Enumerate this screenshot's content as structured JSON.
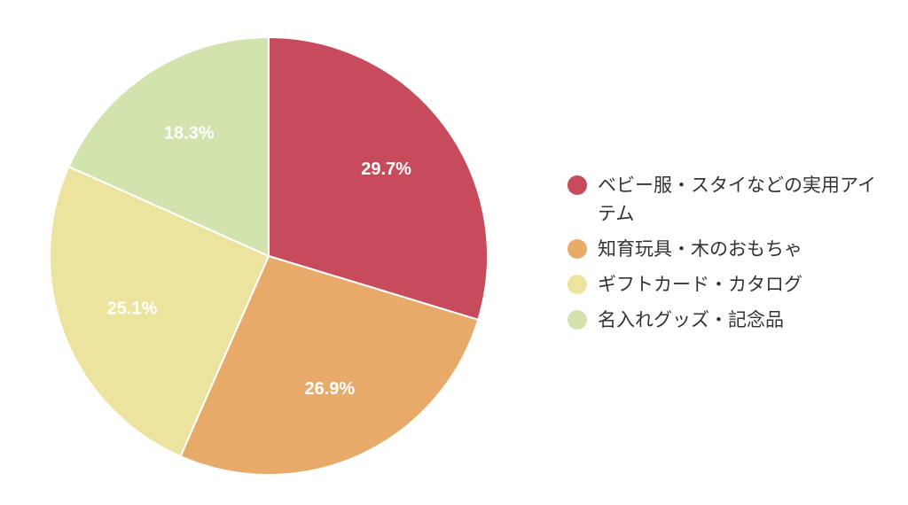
{
  "chart_data": {
    "type": "pie",
    "start_angle_deg": 0,
    "direction": "clockwise",
    "legend_position": "right",
    "slices": [
      {
        "label": "ベビー服・スタイなどの実用アイテム",
        "value": 29.7,
        "value_label": "29.7%",
        "color": "#c84b5c"
      },
      {
        "label": "知育玩具・木のおもちゃ",
        "value": 26.9,
        "value_label": "26.9%",
        "color": "#e8aa68"
      },
      {
        "label": "ギフトカード・カタログ",
        "value": 25.1,
        "value_label": "25.1%",
        "color": "#ece49e"
      },
      {
        "label": "名入れグッズ・記念品",
        "value": 18.3,
        "value_label": "18.3%",
        "color": "#d3e3ad"
      }
    ]
  }
}
